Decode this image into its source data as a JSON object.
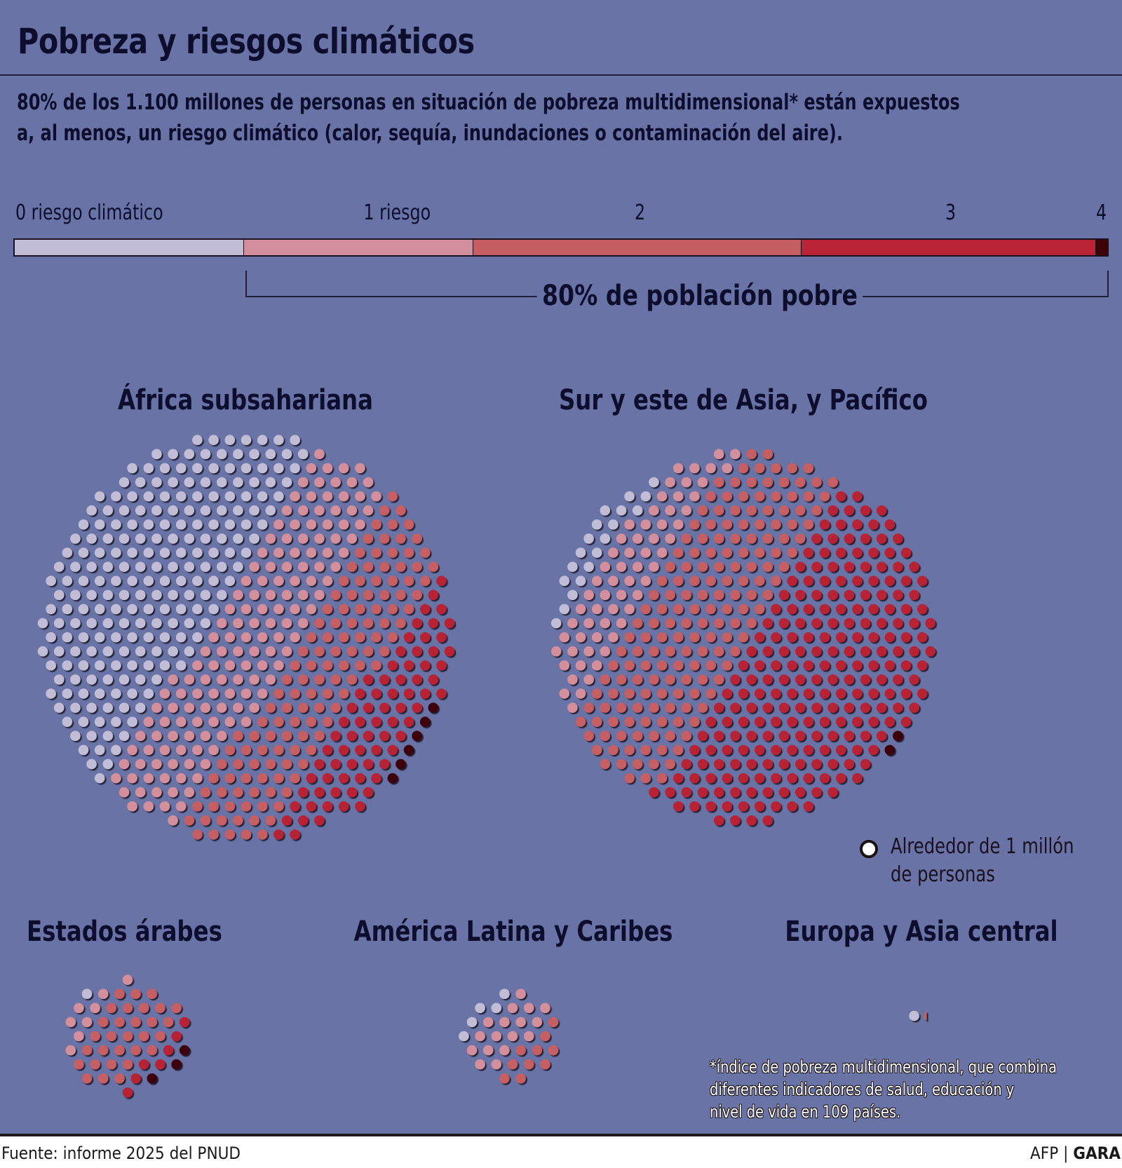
{
  "header": {
    "title": "Pobreza y riesgos climáticos",
    "subtitle_line1": "80% de los 1.100 millones de personas en situación de pobreza multidimensional* están expuestos",
    "subtitle_line2": "a, al menos, un riesgo climático (calor, sequía, inundaciones o contaminación del aire)."
  },
  "colors": {
    "background": "#6973a5",
    "risk_0": "#c1bdd7",
    "risk_1": "#d38f9b",
    "risk_2": "#c55e63",
    "risk_3": "#b82436",
    "risk_4": "#3d0208"
  },
  "chart_data": [
    {
      "type": "bar",
      "orientation": "horizontal-stacked",
      "categories": [
        "0 riesgo climático",
        "1 riesgo",
        "2",
        "3",
        "4"
      ],
      "values": [
        21,
        21,
        30,
        27,
        1
      ],
      "unit": "%",
      "annotation": "80% de población pobre"
    },
    {
      "type": "scatter",
      "subtype": "dot-matrix",
      "legend": "Alrededor de 1 millón de personas",
      "regions": [
        {
          "name": "África subsahariana",
          "counts": [
            220,
            150,
            130,
            74,
            6
          ]
        },
        {
          "name": "Sur y este de Asia, y Pacífico",
          "counts": [
            19,
            63,
            172,
            230,
            2
          ]
        },
        {
          "name": "Estados árabes",
          "counts": [
            1,
            8,
            30,
            7,
            3
          ]
        },
        {
          "name": "América Latina y Caribes",
          "counts": [
            5,
            17,
            10,
            0,
            0
          ]
        },
        {
          "name": "Europa y Asia central",
          "counts": [
            1,
            0,
            0.5,
            0,
            0
          ]
        }
      ]
    }
  ],
  "bar_labels": [
    "0 riesgo climático",
    "1 riesgo",
    "2",
    "3",
    "4"
  ],
  "bracket_label": "80% de población pobre",
  "regions": {
    "africa": "África subsahariana",
    "asia": "Sur y este de Asia, y Pacífico",
    "arab": "Estados árabes",
    "latam": "América Latina y Caribes",
    "europe": "Europa y Asia central"
  },
  "legend": {
    "line1": "Alrededor de 1 millón",
    "line2": "de personas"
  },
  "footnote": {
    "line1": "*índice de pobreza multidimensional, que combina",
    "line2": "diferentes indicadores de salud, educación y",
    "line3": "nivel de vida en 109 países."
  },
  "footer": {
    "source": "Fuente: informe 2025 del PNUD",
    "agency": "AFP |",
    "outlet": "GARA"
  }
}
